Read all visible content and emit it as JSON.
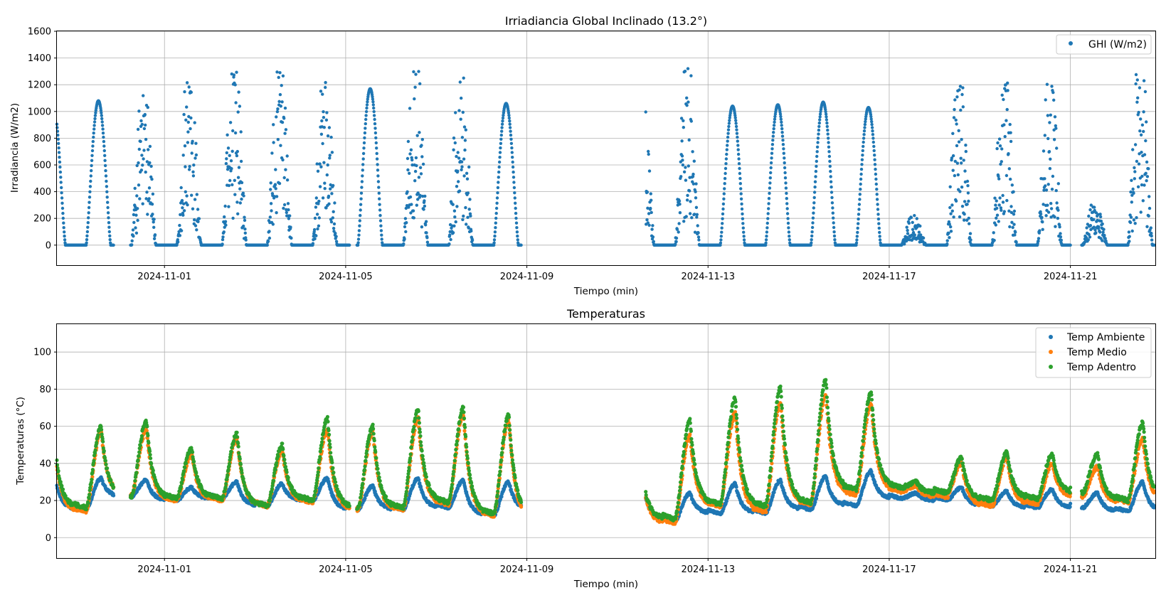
{
  "chart_data": [
    {
      "type": "scatter",
      "title": "Irriadiancia Global Inclinado (13.2°)",
      "xlabel": "Tiempo (min)",
      "ylabel": "Irradiancia (W/m2)",
      "x_range": [
        "2024-10-29T15:00",
        "2024-11-22T21:00"
      ],
      "ylim": [
        -150,
        1600
      ],
      "yticks": [
        0,
        200,
        400,
        600,
        800,
        1000,
        1200,
        1400,
        1600
      ],
      "xticks": [
        "2024-11-01",
        "2024-11-05",
        "2024-11-09",
        "2024-11-13",
        "2024-11-17",
        "2024-11-21"
      ],
      "grid": true,
      "legend_position": "top-right",
      "series": [
        {
          "name": "GHI (W/m2)",
          "color": "#1f77b4",
          "segments": [
            [
              "2024-10-29T15:00",
              "2024-10-30T21:00"
            ],
            [
              "2024-10-31T06:00",
              "2024-11-05T02:00"
            ],
            [
              "2024-11-05T06:00",
              "2024-11-08T21:00"
            ],
            [
              "2024-11-11T15:00",
              "2024-11-21T00:00"
            ],
            [
              "2024-11-21T06:00",
              "2024-11-22T20:30"
            ]
          ],
          "days": [
            {
              "date": "2024-10-29",
              "peak": 1060,
              "style": "clear"
            },
            {
              "date": "2024-10-30",
              "peak": 1080,
              "style": "clear"
            },
            {
              "date": "2024-10-31",
              "peak": 1150,
              "style": "cloudy"
            },
            {
              "date": "2024-11-01",
              "peak": 1250,
              "style": "cloudy"
            },
            {
              "date": "2024-11-02",
              "peak": 1330,
              "style": "cloudy"
            },
            {
              "date": "2024-11-03",
              "peak": 1320,
              "style": "cloudy"
            },
            {
              "date": "2024-11-04",
              "peak": 1230,
              "style": "cloudy"
            },
            {
              "date": "2024-11-05",
              "peak": 1170,
              "style": "clear"
            },
            {
              "date": "2024-11-06",
              "peak": 1310,
              "style": "cloudy"
            },
            {
              "date": "2024-11-07",
              "peak": 1290,
              "style": "cloudy"
            },
            {
              "date": "2024-11-08",
              "peak": 1060,
              "style": "clear"
            },
            {
              "date": "2024-11-11",
              "peak": 1090,
              "style": "cloudy"
            },
            {
              "date": "2024-11-12",
              "peak": 1330,
              "style": "cloudy"
            },
            {
              "date": "2024-11-13",
              "peak": 1040,
              "style": "clear"
            },
            {
              "date": "2024-11-14",
              "peak": 1050,
              "style": "clear"
            },
            {
              "date": "2024-11-15",
              "peak": 1070,
              "style": "clear"
            },
            {
              "date": "2024-11-16",
              "peak": 1030,
              "style": "clear"
            },
            {
              "date": "2024-11-17",
              "peak": 250,
              "style": "overcast"
            },
            {
              "date": "2024-11-18",
              "peak": 1200,
              "style": "cloudy"
            },
            {
              "date": "2024-11-19",
              "peak": 1230,
              "style": "cloudy"
            },
            {
              "date": "2024-11-20",
              "peak": 1250,
              "style": "cloudy"
            },
            {
              "date": "2024-11-21",
              "peak": 360,
              "style": "overcast"
            },
            {
              "date": "2024-11-22",
              "peak": 1350,
              "style": "cloudy"
            }
          ]
        }
      ]
    },
    {
      "type": "scatter",
      "title": "Temperaturas",
      "xlabel": "Tiempo (min)",
      "ylabel": "Temperaturas (°C)",
      "x_range": [
        "2024-10-29T15:00",
        "2024-11-22T21:00"
      ],
      "ylim": [
        -11,
        115
      ],
      "yticks": [
        0,
        20,
        40,
        60,
        80,
        100
      ],
      "xticks": [
        "2024-11-01",
        "2024-11-05",
        "2024-11-09",
        "2024-11-13",
        "2024-11-17",
        "2024-11-21"
      ],
      "grid": true,
      "legend_position": "top-right",
      "segments": [
        [
          "2024-10-29T15:00",
          "2024-10-30T21:00"
        ],
        [
          "2024-10-31T06:00",
          "2024-11-05T02:00"
        ],
        [
          "2024-11-05T06:00",
          "2024-11-08T21:00"
        ],
        [
          "2024-11-11T15:00",
          "2024-11-21T00:00"
        ],
        [
          "2024-11-21T06:00",
          "2024-11-22T20:30"
        ]
      ],
      "series": [
        {
          "name": "Temp Ambiente",
          "color": "#1f77b4",
          "daily_min": [
            15,
            15,
            22,
            20,
            21,
            17,
            20,
            15,
            15,
            16,
            12,
            15,
            9,
            13,
            13,
            15,
            17,
            21,
            20,
            17,
            16,
            16,
            14
          ],
          "daily_max": [
            30,
            32,
            31,
            27,
            30,
            29,
            32,
            28,
            32,
            31,
            30,
            24,
            24,
            29,
            31,
            33,
            36,
            24,
            27,
            25,
            26,
            24,
            30
          ]
        },
        {
          "name": "Temp Medio",
          "color": "#ff7f0e",
          "daily_min": [
            14,
            14,
            23,
            20,
            20,
            17,
            19,
            15,
            15,
            18,
            12,
            10,
            8,
            17,
            14,
            18,
            23,
            25,
            22,
            17,
            18,
            22,
            19
          ],
          "daily_max": [
            42,
            57,
            58,
            45,
            54,
            47,
            58,
            57,
            64,
            66,
            63,
            24,
            55,
            67,
            73,
            77,
            72,
            28,
            40,
            43,
            40,
            38,
            53
          ]
        },
        {
          "name": "Temp Adentro",
          "color": "#2ca02c",
          "daily_min": [
            16,
            16,
            22,
            21,
            21,
            17,
            20,
            16,
            16,
            19,
            13,
            12,
            10,
            18,
            17,
            19,
            26,
            27,
            24,
            20,
            21,
            24,
            20
          ],
          "daily_max": [
            45,
            60,
            63,
            48,
            56,
            50,
            64,
            60,
            69,
            70,
            66,
            26,
            63,
            75,
            81,
            85,
            78,
            30,
            43,
            46,
            45,
            45,
            62
          ]
        }
      ]
    }
  ]
}
